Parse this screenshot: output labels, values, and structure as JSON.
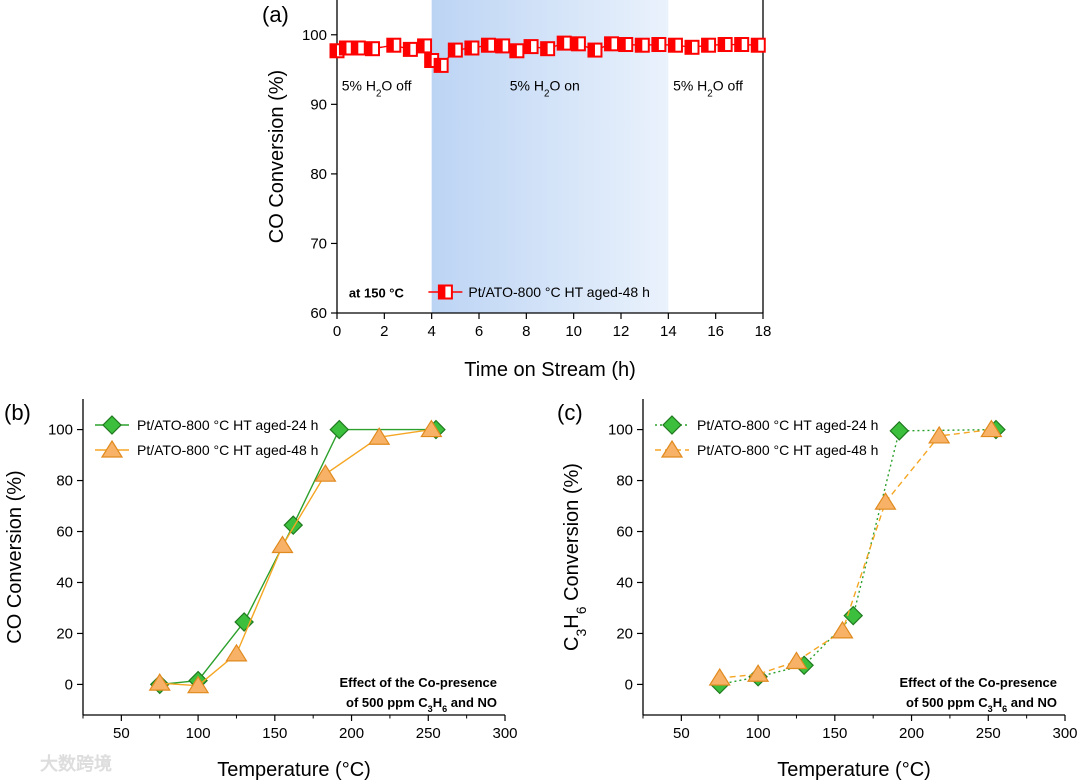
{
  "chart_data": [
    {
      "id": "a",
      "type": "scatter",
      "panel_label": "(a)",
      "xlabel": "Time on Stream (h)",
      "ylabel": "CO Conversion (%)",
      "xlim": [
        0,
        18
      ],
      "ylim": [
        60,
        105
      ],
      "xticks": [
        0,
        2,
        4,
        6,
        8,
        10,
        12,
        14,
        16,
        18
      ],
      "yticks": [
        60,
        70,
        80,
        90,
        100
      ],
      "shaded_region": {
        "x": [
          4,
          14
        ],
        "color": "#cfe0f7"
      },
      "annotations": [
        {
          "text": "5% H₂O off",
          "x": 0.2,
          "y": 92
        },
        {
          "text": "5% H₂O on",
          "x": 7.3,
          "y": 92
        },
        {
          "text": "5% H₂O off",
          "x": 14.2,
          "y": 92
        },
        {
          "text": "at 150 °C",
          "x": 0.5,
          "y": 62.2,
          "bold": true
        }
      ],
      "series": [
        {
          "name": "Pt/ATO-800 °C HT aged-48 h",
          "color": "#ff0000",
          "marker": "square-half",
          "x": [
            0,
            0.4,
            0.9,
            1.5,
            2.4,
            3.1,
            3.7,
            4.0,
            4.4,
            5.0,
            5.7,
            6.4,
            7.0,
            7.6,
            8.2,
            8.9,
            9.6,
            10.2,
            10.9,
            11.6,
            12.2,
            12.9,
            13.6,
            14.3,
            15.0,
            15.7,
            16.4,
            17.1,
            17.8
          ],
          "y": [
            97.7,
            98.1,
            98.1,
            98.0,
            98.5,
            97.9,
            98.4,
            96.3,
            95.6,
            97.8,
            98.1,
            98.5,
            98.4,
            97.7,
            98.3,
            98.0,
            98.8,
            98.7,
            97.8,
            98.7,
            98.6,
            98.5,
            98.6,
            98.5,
            98.2,
            98.5,
            98.6,
            98.6,
            98.5
          ]
        }
      ]
    },
    {
      "id": "b",
      "type": "line",
      "panel_label": "(b)",
      "xlabel": "Temperature (°C)",
      "ylabel": "CO Conversion (%)",
      "xlim": [
        25,
        300
      ],
      "ylim": [
        -12,
        112
      ],
      "xticks": [
        50,
        100,
        150,
        200,
        250,
        300
      ],
      "yticks": [
        0,
        20,
        40,
        60,
        80,
        100
      ],
      "note": [
        "Effect of the Co-presence",
        "of 500 ppm C₃H₆ and NO"
      ],
      "series": [
        {
          "name": "Pt/ATO-800 °C HT aged-24 h",
          "color": "#2ca02c",
          "marker": "diamond",
          "dash": "solid",
          "x": [
            75,
            100,
            130,
            162,
            192,
            255
          ],
          "y": [
            0,
            1.5,
            24.5,
            62.5,
            100,
            100
          ]
        },
        {
          "name": "Pt/ATO-800 °C HT aged-48 h",
          "color": "#f5a623",
          "marker": "triangle",
          "dash": "solid",
          "x": [
            75,
            100,
            125,
            155,
            183,
            218,
            252
          ],
          "y": [
            0.5,
            -0.5,
            12,
            54.5,
            82.5,
            97,
            100
          ]
        }
      ]
    },
    {
      "id": "c",
      "type": "line",
      "panel_label": "(c)",
      "xlabel": "Temperature (°C)",
      "ylabel": "C₃H₆ Conversion (%)",
      "xlim": [
        25,
        300
      ],
      "ylim": [
        -12,
        112
      ],
      "xticks": [
        50,
        100,
        150,
        200,
        250,
        300
      ],
      "yticks": [
        0,
        20,
        40,
        60,
        80,
        100
      ],
      "note": [
        "Effect of the Co-presence",
        "of 500 ppm C₃H₆ and NO"
      ],
      "series": [
        {
          "name": "Pt/ATO-800 °C HT aged-24 h",
          "color": "#2ca02c",
          "marker": "diamond",
          "dash": "dotted",
          "x": [
            75,
            100,
            130,
            162,
            192,
            255
          ],
          "y": [
            0,
            3,
            7.5,
            27,
            99.5,
            100
          ]
        },
        {
          "name": "Pt/ATO-800 °C HT aged-48 h",
          "color": "#f5a623",
          "marker": "triangle",
          "dash": "dashed",
          "x": [
            75,
            100,
            125,
            155,
            183,
            218,
            252
          ],
          "y": [
            2.5,
            4,
            9,
            21,
            71.5,
            97.5,
            100
          ]
        }
      ]
    }
  ],
  "watermark": "大数跨境"
}
